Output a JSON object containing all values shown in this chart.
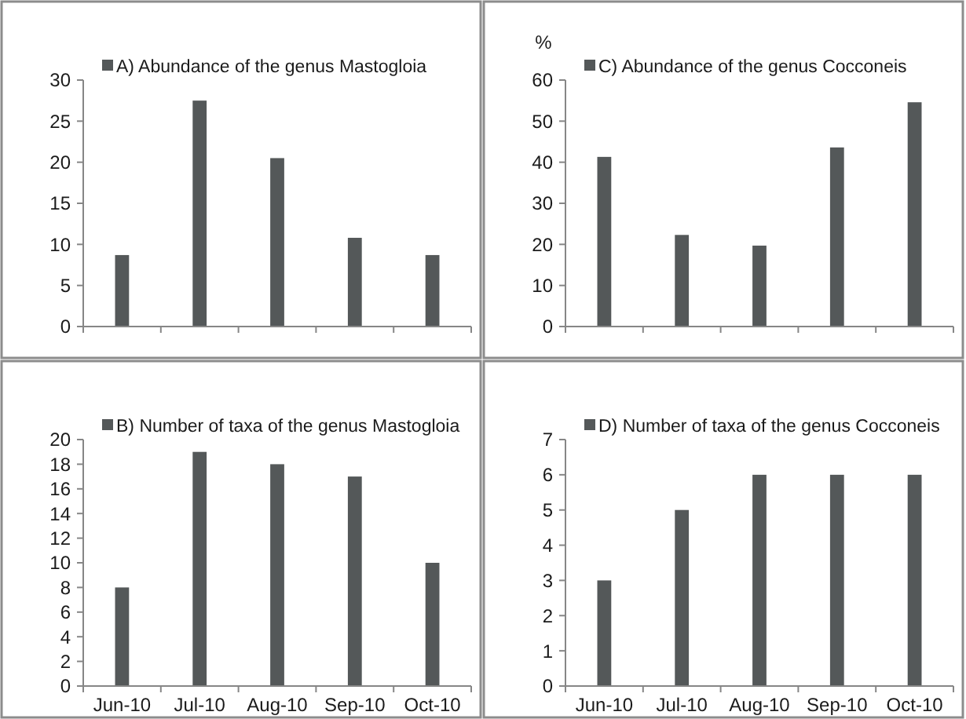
{
  "chart_data": [
    {
      "type": "bar",
      "categories": [
        null,
        null,
        null,
        null,
        null
      ],
      "series": [
        {
          "name": "A) Abundance of the genus Mastogloia",
          "color": "#545859",
          "values": [
            8.7,
            27.5,
            20.5,
            10.8,
            8.7
          ]
        }
      ],
      "ylim": [
        0,
        30
      ],
      "yticks": [
        0,
        5,
        10,
        15,
        20,
        25,
        30
      ],
      "tick_labels": "y",
      "legend": "top",
      "grid": false
    },
    {
      "type": "bar",
      "categories": [
        null,
        null,
        null,
        null,
        null
      ],
      "ylabel": "%",
      "series": [
        {
          "name": "C) Abundance of the genus Cocconeis",
          "color": "#545859",
          "values": [
            41.3,
            22.3,
            19.7,
            43.6,
            54.6
          ]
        }
      ],
      "ylim": [
        0,
        60
      ],
      "yticks": [
        0,
        10,
        20,
        30,
        40,
        50,
        60
      ],
      "tick_labels": "y",
      "legend": "top",
      "grid": false
    },
    {
      "type": "bar",
      "categories": [
        "Jun-10",
        "Jul-10",
        "Aug-10",
        "Sep-10",
        "Oct-10"
      ],
      "series": [
        {
          "name": "B) Number of taxa of the genus Mastogloia",
          "color": "#545859",
          "values": [
            8,
            19,
            18,
            17,
            10
          ]
        }
      ],
      "ylim": [
        0,
        20
      ],
      "yticks": [
        0,
        2,
        4,
        6,
        8,
        10,
        12,
        14,
        16,
        18,
        20
      ],
      "legend": "top",
      "grid": false
    },
    {
      "type": "bar",
      "categories": [
        "Jun-10",
        "Jul-10",
        "Aug-10",
        "Sep-10",
        "Oct-10"
      ],
      "series": [
        {
          "name": "D) Number of taxa of the genus Cocconeis",
          "color": "#545859",
          "values": [
            3,
            5,
            6,
            6,
            6
          ]
        }
      ],
      "ylim": [
        0,
        7
      ],
      "yticks": [
        0,
        1,
        2,
        3,
        4,
        5,
        6,
        7
      ],
      "legend": "top",
      "grid": false
    }
  ]
}
